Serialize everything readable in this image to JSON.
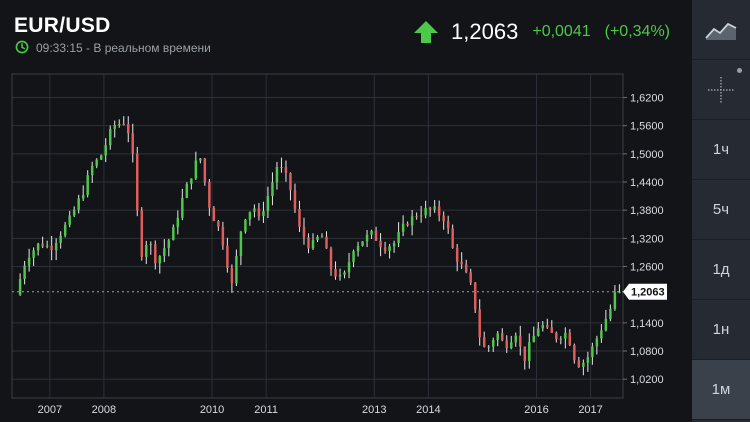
{
  "header": {
    "symbol": "EUR/USD",
    "timestamp": "09:33:15 - В реальном времени",
    "price": "1,2063",
    "change": "+0,0041",
    "change_pct": "(+0,34%)",
    "direction": "up"
  },
  "colors": {
    "up": "#4cc84a",
    "down": "#e05d5d",
    "price_label_bg": "#ffffff"
  },
  "sidebar": {
    "items": [
      {
        "name": "chart-type",
        "icon": "area-chart-icon",
        "label": ""
      },
      {
        "name": "crosshair",
        "icon": "crosshair-icon",
        "label": ""
      },
      {
        "name": "interval-1h",
        "label": "1ч"
      },
      {
        "name": "interval-5h",
        "label": "5ч"
      },
      {
        "name": "interval-1d",
        "label": "1д"
      },
      {
        "name": "interval-1w",
        "label": "1н"
      },
      {
        "name": "interval-1m",
        "label": "1м",
        "active": true
      }
    ]
  },
  "chart_data": {
    "type": "candlestick",
    "interval": "monthly",
    "y_ticks": [
      "1,6200",
      "1,5600",
      "1,5000",
      "1,4400",
      "1,3800",
      "1,3200",
      "1,2600",
      "1,1400",
      "1,0800",
      "1,0200"
    ],
    "ylim": [
      0.98,
      1.67
    ],
    "x_ticks": [
      "2007",
      "2008",
      "2010",
      "2011",
      "2013",
      "2014",
      "2016",
      "2017"
    ],
    "current_price_label": "1,2063",
    "current_price": 1.2063,
    "path": [
      [
        2006.5,
        1.2
      ],
      [
        2006.7,
        1.28
      ],
      [
        2006.95,
        1.31
      ],
      [
        2007.15,
        1.3
      ],
      [
        2007.5,
        1.36
      ],
      [
        2007.75,
        1.42
      ],
      [
        2007.9,
        1.47
      ],
      [
        2008.1,
        1.5
      ],
      [
        2008.3,
        1.56
      ],
      [
        2008.55,
        1.57
      ],
      [
        2008.7,
        1.47
      ],
      [
        2008.8,
        1.28
      ],
      [
        2008.95,
        1.32
      ],
      [
        2009.1,
        1.27
      ],
      [
        2009.4,
        1.33
      ],
      [
        2009.6,
        1.41
      ],
      [
        2009.9,
        1.5
      ],
      [
        2010.1,
        1.38
      ],
      [
        2010.3,
        1.33
      ],
      [
        2010.5,
        1.22
      ],
      [
        2010.7,
        1.36
      ],
      [
        2010.9,
        1.39
      ],
      [
        2011.0,
        1.36
      ],
      [
        2011.2,
        1.42
      ],
      [
        2011.35,
        1.48
      ],
      [
        2011.55,
        1.44
      ],
      [
        2011.75,
        1.34
      ],
      [
        2011.95,
        1.3
      ],
      [
        2012.15,
        1.33
      ],
      [
        2012.35,
        1.25
      ],
      [
        2012.55,
        1.23
      ],
      [
        2012.75,
        1.3
      ],
      [
        2012.95,
        1.32
      ],
      [
        2013.1,
        1.33
      ],
      [
        2013.3,
        1.3
      ],
      [
        2013.5,
        1.31
      ],
      [
        2013.7,
        1.35
      ],
      [
        2013.9,
        1.37
      ],
      [
        2014.1,
        1.38
      ],
      [
        2014.25,
        1.38
      ],
      [
        2014.45,
        1.36
      ],
      [
        2014.6,
        1.29
      ],
      [
        2014.8,
        1.25
      ],
      [
        2014.95,
        1.21
      ],
      [
        2015.1,
        1.1
      ],
      [
        2015.2,
        1.08
      ],
      [
        2015.4,
        1.12
      ],
      [
        2015.55,
        1.09
      ],
      [
        2015.75,
        1.12
      ],
      [
        2015.9,
        1.06
      ],
      [
        2016.0,
        1.09
      ],
      [
        2016.2,
        1.14
      ],
      [
        2016.35,
        1.12
      ],
      [
        2016.5,
        1.11
      ],
      [
        2016.7,
        1.12
      ],
      [
        2016.85,
        1.06
      ],
      [
        2016.95,
        1.05
      ],
      [
        2017.1,
        1.07
      ],
      [
        2017.3,
        1.12
      ],
      [
        2017.5,
        1.17
      ],
      [
        2017.6,
        1.2063
      ]
    ]
  }
}
